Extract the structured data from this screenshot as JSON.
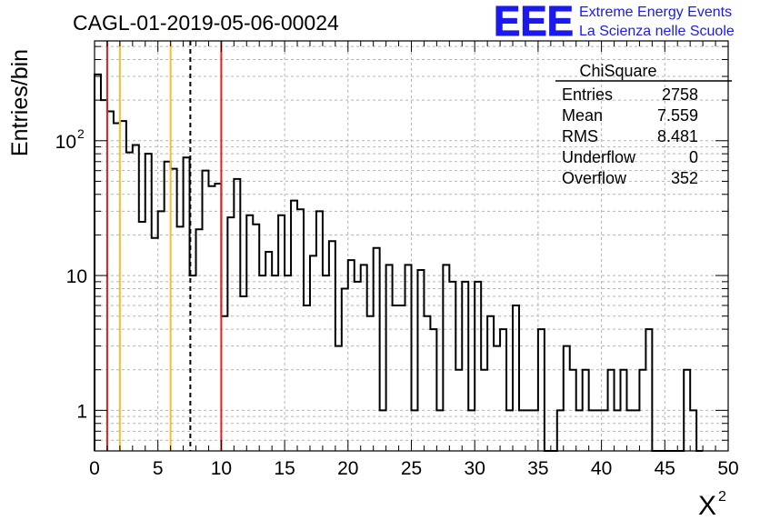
{
  "chart_data": {
    "type": "histogram",
    "title": "CAGL-01-2019-05-06-00024",
    "xlabel": "X",
    "xlabel_superscript": "2",
    "ylabel": "Entries/bin",
    "xlim": [
      0,
      50
    ],
    "ylim": [
      0.5,
      550
    ],
    "yscale": "log",
    "grid": true,
    "bin_width": 0.5,
    "x_ticks": [
      "0",
      "5",
      "10",
      "15",
      "20",
      "25",
      "30",
      "35",
      "40",
      "45",
      "50"
    ],
    "y_ticks": [
      {
        "value": 1,
        "label": "1"
      },
      {
        "value": 10,
        "label": "10"
      },
      {
        "value": 100,
        "label": "10",
        "sup": "2"
      }
    ],
    "bins": [
      [
        0.0,
        310
      ],
      [
        0.5,
        200
      ],
      [
        1.0,
        165
      ],
      [
        1.5,
        135
      ],
      [
        2.0,
        140
      ],
      [
        2.5,
        82
      ],
      [
        3.0,
        93
      ],
      [
        3.5,
        25
      ],
      [
        4.0,
        80
      ],
      [
        4.5,
        19
      ],
      [
        5.0,
        30
      ],
      [
        5.5,
        70
      ],
      [
        6.0,
        62
      ],
      [
        6.5,
        23
      ],
      [
        7.0,
        75
      ],
      [
        7.5,
        10
      ],
      [
        8.0,
        22
      ],
      [
        8.5,
        60
      ],
      [
        9.0,
        46
      ],
      [
        9.5,
        48
      ],
      [
        10.0,
        5
      ],
      [
        10.5,
        27
      ],
      [
        11.0,
        52
      ],
      [
        11.5,
        7
      ],
      [
        12.0,
        28
      ],
      [
        12.5,
        24
      ],
      [
        13.0,
        10
      ],
      [
        13.5,
        15
      ],
      [
        14.0,
        10
      ],
      [
        14.5,
        28
      ],
      [
        15.0,
        10
      ],
      [
        15.5,
        36
      ],
      [
        16.0,
        31
      ],
      [
        16.5,
        6
      ],
      [
        17.0,
        14
      ],
      [
        17.5,
        30
      ],
      [
        18.0,
        10
      ],
      [
        18.5,
        18
      ],
      [
        19.0,
        3
      ],
      [
        19.5,
        8
      ],
      [
        20.0,
        13
      ],
      [
        20.5,
        9
      ],
      [
        21.0,
        12
      ],
      [
        21.5,
        5
      ],
      [
        22.0,
        16
      ],
      [
        22.5,
        1
      ],
      [
        23.0,
        12
      ],
      [
        23.5,
        6
      ],
      [
        24.0,
        6
      ],
      [
        24.5,
        12
      ],
      [
        25.0,
        1
      ],
      [
        25.5,
        11
      ],
      [
        26.0,
        5
      ],
      [
        26.5,
        4
      ],
      [
        27.0,
        1
      ],
      [
        27.5,
        12
      ],
      [
        28.0,
        9
      ],
      [
        28.5,
        2
      ],
      [
        29.0,
        9
      ],
      [
        29.5,
        1
      ],
      [
        30.0,
        9
      ],
      [
        30.5,
        2
      ],
      [
        31.0,
        5
      ],
      [
        31.5,
        3
      ],
      [
        32.0,
        4
      ],
      [
        32.5,
        1
      ],
      [
        33.0,
        6
      ],
      [
        33.5,
        1
      ],
      [
        34.0,
        1
      ],
      [
        34.5,
        1
      ],
      [
        35.0,
        4
      ],
      [
        35.5,
        0
      ],
      [
        36.0,
        0
      ],
      [
        36.5,
        1
      ],
      [
        37.0,
        3
      ],
      [
        37.5,
        2
      ],
      [
        38.0,
        1
      ],
      [
        38.5,
        2
      ],
      [
        39.0,
        1
      ],
      [
        39.5,
        1
      ],
      [
        40.0,
        1
      ],
      [
        40.5,
        2
      ],
      [
        41.0,
        1
      ],
      [
        41.5,
        2
      ],
      [
        42.0,
        1
      ],
      [
        42.5,
        1
      ],
      [
        43.0,
        2
      ],
      [
        43.5,
        4
      ],
      [
        44.0,
        0
      ],
      [
        44.5,
        0
      ],
      [
        45.0,
        0
      ],
      [
        45.5,
        0
      ],
      [
        46.0,
        0
      ],
      [
        46.5,
        2
      ],
      [
        47.0,
        1
      ],
      [
        47.5,
        0
      ]
    ],
    "vertical_lines": [
      {
        "x": 1,
        "color": "#dd2222",
        "style": "solid"
      },
      {
        "x": 2,
        "color": "#f2c12e",
        "style": "solid"
      },
      {
        "x": 6,
        "color": "#f2c12e",
        "style": "solid"
      },
      {
        "x": 7.559,
        "color": "#000000",
        "style": "dashed"
      },
      {
        "x": 10,
        "color": "#dd2222",
        "style": "solid"
      }
    ],
    "stats_box": {
      "title": "ChiSquare",
      "rows": [
        {
          "label": "Entries",
          "value": "2758"
        },
        {
          "label": "Mean",
          "value": "7.559"
        },
        {
          "label": "RMS",
          "value": "8.481"
        },
        {
          "label": "Underflow",
          "value": "0"
        },
        {
          "label": "Overflow",
          "value": "352"
        }
      ]
    },
    "logo": {
      "mark": "EEE",
      "line1": "Extreme Energy Events",
      "line2": "La Scienza nelle Scuole",
      "color": "#1a1aee"
    }
  }
}
